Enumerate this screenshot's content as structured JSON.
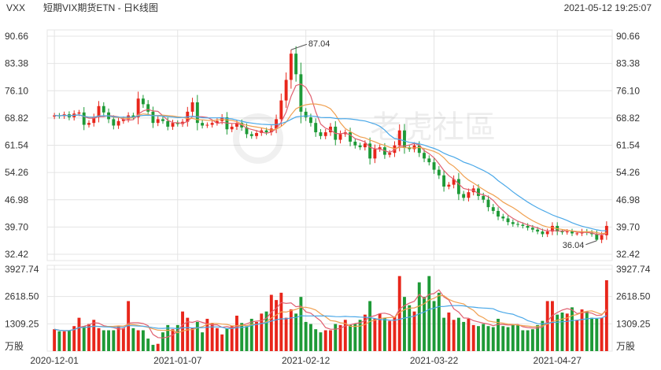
{
  "header": {
    "code": "VXX",
    "name": "短期VIX期货ETN - 日K线图",
    "datetime": "2021-05-12 19:25:07"
  },
  "watermark": "老虎社區",
  "colors": {
    "up": "#e8261b",
    "down": "#1e9a37",
    "ma_fast": "#e06070",
    "ma_mid": "#f0a050",
    "ma_slow": "#4aa8e8",
    "grid": "#e4e4e4",
    "text": "#333333"
  },
  "chart_data": [
    {
      "type": "candlestick",
      "title": "短期VIX期货ETN - 日K线图",
      "ylim": [
        32.42,
        90.66
      ],
      "y_ticks": [
        "90.66",
        "83.38",
        "76.10",
        "68.82",
        "61.54",
        "54.26",
        "46.98",
        "39.70",
        "32.42"
      ],
      "x_ticks": [
        "2020-12-01",
        "2021-01-07",
        "2021-02-12",
        "2021-03-22",
        "2021-04-27"
      ],
      "annotations": [
        {
          "label": "87.04",
          "value": 87.04,
          "kind": "high"
        },
        {
          "label": "36.04",
          "value": 36.04,
          "kind": "low"
        }
      ],
      "close": [
        69.5,
        69.3,
        69.8,
        69.0,
        70.0,
        70.3,
        67.0,
        67.5,
        69.0,
        72.0,
        70.3,
        68.5,
        66.8,
        68.0,
        68.5,
        69.5,
        69.0,
        74.0,
        72.5,
        70.5,
        67.5,
        68.5,
        68.0,
        66.5,
        67.5,
        67.2,
        67.8,
        70.5,
        73.0,
        67.5,
        66.8,
        67.0,
        67.5,
        68.0,
        69.0,
        65.8,
        66.5,
        67.5,
        66.3,
        64.5,
        64.0,
        64.8,
        65.5,
        65.0,
        66.0,
        68.5,
        73.5,
        79.0,
        86.0,
        80.5,
        70.5,
        69.0,
        67.5,
        65.0,
        64.0,
        65.0,
        66.5,
        63.0,
        64.5,
        65.0,
        62.5,
        61.5,
        61.0,
        62.0,
        58.0,
        60.5,
        61.0,
        59.0,
        59.5,
        61.5,
        65.5,
        61.0,
        60.5,
        61.5,
        59.5,
        58.0,
        57.0,
        55.0,
        53.5,
        50.5,
        51.0,
        52.5,
        48.5,
        47.5,
        49.0,
        50.0,
        48.0,
        47.0,
        45.0,
        44.0,
        42.5,
        42.0,
        41.0,
        40.5,
        40.3,
        40.0,
        39.5,
        39.0,
        38.5,
        37.8,
        38.5,
        40.0,
        38.5,
        38.3,
        38.5,
        38.0,
        38.0,
        38.5,
        38.2,
        37.8,
        36.3,
        37.5,
        40.0
      ],
      "volume": [
        1050,
        950,
        950,
        1000,
        1200,
        1600,
        1200,
        1300,
        1500,
        1100,
        1000,
        1000,
        1000,
        1200,
        1100,
        2400,
        1100,
        1000,
        1000,
        600,
        300,
        350,
        900,
        1250,
        1050,
        1250,
        1900,
        1600,
        1100,
        1400,
        900,
        1550,
        1350,
        1100,
        800,
        1100,
        1200,
        1700,
        1350,
        1200,
        1550,
        1400,
        1800,
        1900,
        2700,
        2450,
        2800,
        1600,
        2000,
        1800,
        2600,
        1400,
        1300,
        1050,
        900,
        1000,
        1000,
        1300,
        1250,
        1500,
        1250,
        1300,
        1500,
        1750,
        2400,
        1550,
        1800,
        1600,
        1450,
        1650,
        3600,
        2600,
        2200,
        1900,
        3300,
        2600,
        3600,
        2400,
        2800,
        1600,
        1850,
        1500,
        1600,
        1400,
        1550,
        1250,
        1200,
        1300,
        1200,
        1150,
        1550,
        1200,
        1150,
        1250,
        1250,
        1000,
        1000,
        1050,
        1250,
        1450,
        2400,
        2400,
        1750,
        1850,
        1800,
        2100,
        1500,
        2000,
        1900,
        1600,
        1550,
        1600,
        3400
      ]
    },
    {
      "type": "bar",
      "title": "",
      "ylabel": "万股",
      "ylim": [
        0,
        3927.74
      ],
      "y_ticks": [
        "3927.74",
        "2618.50",
        "1309.25"
      ]
    }
  ]
}
